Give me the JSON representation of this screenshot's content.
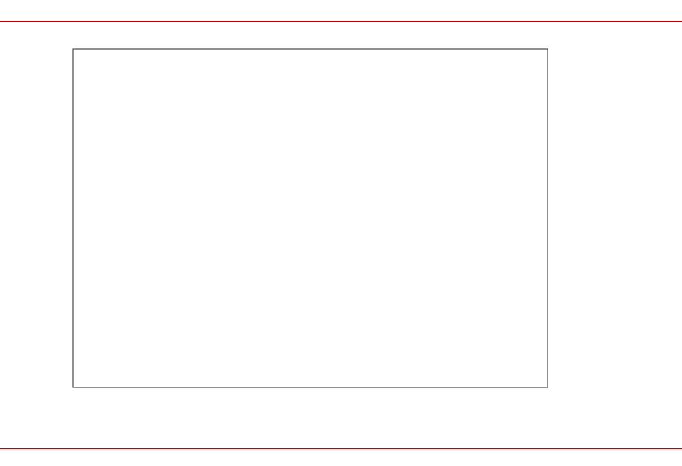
{
  "page": {
    "figure_caption": "",
    "source": ""
  },
  "chart_data": {
    "type": "heatmap",
    "title": "",
    "xlabel": "",
    "colorbar_label": "",
    "colorbar_ticks": [],
    "colorbar_range": [],
    "footnote": "",
    "industries": [],
    "weeks": [],
    "cells": []
  },
  "colors": {
    "accent_red": "#c00000",
    "grid_line": "#9a9a9a",
    "scale_dark": "#67000d",
    "scale_light": "#fff5f0"
  }
}
